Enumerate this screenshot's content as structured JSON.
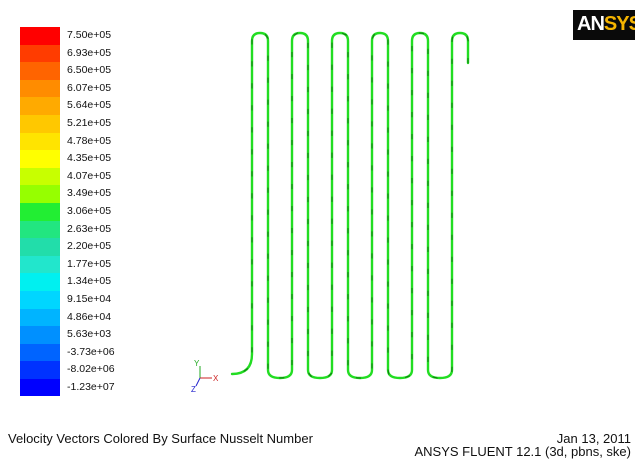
{
  "chart_data": {
    "type": "contour-vector",
    "title": "Velocity Vectors Colored By Surface Nusselt Number",
    "legend": {
      "labels": [
        "7.50e+05",
        "6.93e+05",
        "6.50e+05",
        "6.07e+05",
        "5.64e+05",
        "5.21e+05",
        "4.78e+05",
        "4.35e+05",
        "4.07e+05",
        "3.49e+05",
        "3.06e+05",
        "2.63e+05",
        "2.20e+05",
        "1.77e+05",
        "1.34e+05",
        "9.15e+04",
        "4.86e+04",
        "5.63e+03",
        "-3.73e+06",
        "-8.02e+06",
        "-1.23e+07"
      ],
      "colors": [
        "#ff0000",
        "#ff3c00",
        "#ff6400",
        "#ff8c00",
        "#ffaa00",
        "#ffc800",
        "#ffe400",
        "#ffff00",
        "#c8ff00",
        "#96ff00",
        "#22ee33",
        "#22e680",
        "#22ddaa",
        "#22e6cc",
        "#00f0f0",
        "#00d6ff",
        "#00b4ff",
        "#0090ff",
        "#0064ff",
        "#0032ff",
        "#0000ff"
      ]
    },
    "series": [
      {
        "values": [],
        "color": "#22dd22"
      }
    ]
  },
  "axes": {
    "y_label": "Y",
    "x_label": "X",
    "z_label": "Z"
  },
  "logo": {
    "text_white": "AN",
    "text_yellow": "SYS"
  },
  "footer": {
    "title": "Velocity Vectors Colored By Surface Nusselt Number",
    "date": "Jan 13, 2011",
    "version": "ANSYS FLUENT 12.1 (3d, pbns, ske)"
  }
}
